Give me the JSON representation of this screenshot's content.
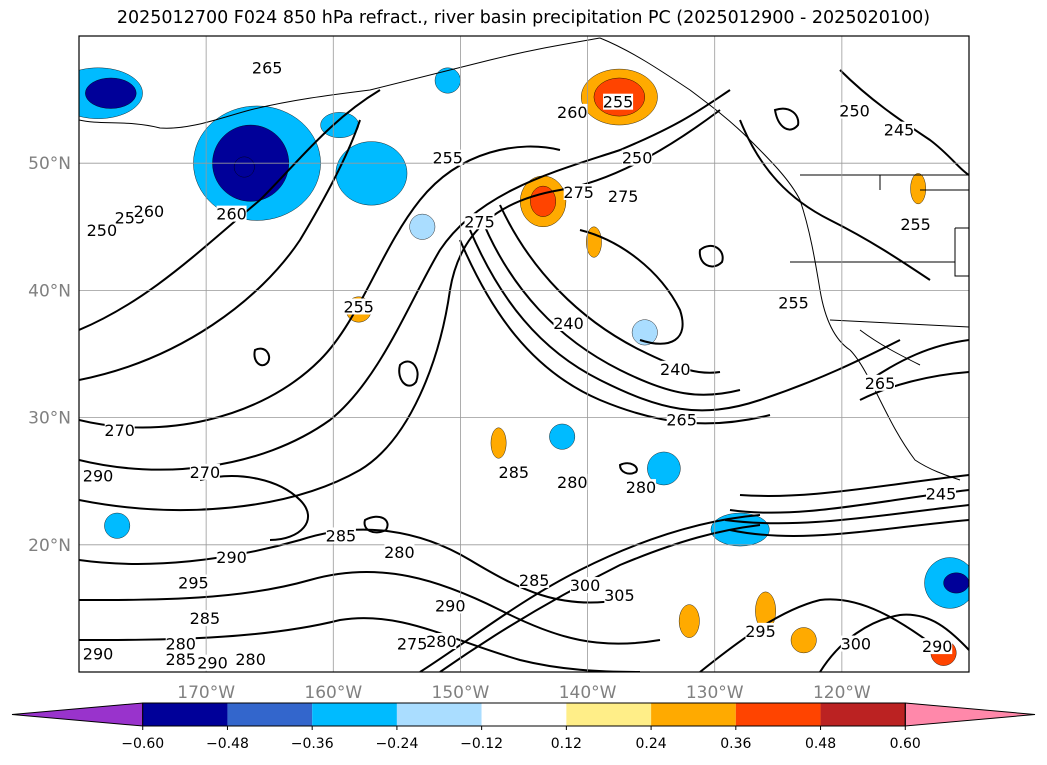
{
  "title": "2025012700 F024 850 hPa refract., river basin precipitation PC (2025012900 - 2025020100)",
  "map": {
    "lon_range": [
      -180,
      -110
    ],
    "lat_range": [
      10,
      60
    ],
    "lat_ticks": [
      "20°N",
      "30°N",
      "40°N",
      "50°N"
    ],
    "lat_values": [
      20,
      30,
      40,
      50
    ],
    "lon_ticks": [
      "170°W",
      "160°W",
      "150°W",
      "140°W",
      "130°W",
      "120°W"
    ],
    "lon_values": [
      -170,
      -160,
      -150,
      -140,
      -130,
      -120
    ],
    "grid": true
  },
  "contour_labels": [
    {
      "text": "265",
      "lon": -165.2,
      "lat": 57.3
    },
    {
      "text": "260",
      "lon": -141.2,
      "lat": 53.8
    },
    {
      "text": "255",
      "lon": -137.6,
      "lat": 54.6
    },
    {
      "text": "255",
      "lon": -151.0,
      "lat": 50.2
    },
    {
      "text": "275",
      "lon": -140.7,
      "lat": 47.5
    },
    {
      "text": "275",
      "lon": -148.5,
      "lat": 45.2
    },
    {
      "text": "275",
      "lon": -137.2,
      "lat": 47.2
    },
    {
      "text": "250",
      "lon": -136.1,
      "lat": 50.2
    },
    {
      "text": "250",
      "lon": -178.2,
      "lat": 44.5
    },
    {
      "text": "255",
      "lon": -176.0,
      "lat": 45.5
    },
    {
      "text": "260",
      "lon": -174.5,
      "lat": 46.0
    },
    {
      "text": "260",
      "lon": -168.0,
      "lat": 45.8
    },
    {
      "text": "255",
      "lon": -158.0,
      "lat": 38.5
    },
    {
      "text": "250",
      "lon": -119.0,
      "lat": 53.9
    },
    {
      "text": "245",
      "lon": -115.5,
      "lat": 52.4
    },
    {
      "text": "255",
      "lon": -114.2,
      "lat": 45.0
    },
    {
      "text": "240",
      "lon": -141.5,
      "lat": 37.2
    },
    {
      "text": "240",
      "lon": -133.1,
      "lat": 33.6
    },
    {
      "text": "255",
      "lon": -123.8,
      "lat": 38.8
    },
    {
      "text": "265",
      "lon": -132.6,
      "lat": 29.6
    },
    {
      "text": "265",
      "lon": -117.0,
      "lat": 32.5
    },
    {
      "text": "270",
      "lon": -176.8,
      "lat": 28.8
    },
    {
      "text": "270",
      "lon": -170.1,
      "lat": 25.5
    },
    {
      "text": "290",
      "lon": -178.5,
      "lat": 25.2
    },
    {
      "text": "285",
      "lon": -145.8,
      "lat": 25.5
    },
    {
      "text": "280",
      "lon": -141.2,
      "lat": 24.7
    },
    {
      "text": "280",
      "lon": -135.8,
      "lat": 24.3
    },
    {
      "text": "285",
      "lon": -159.4,
      "lat": 20.5
    },
    {
      "text": "280",
      "lon": -154.8,
      "lat": 19.2
    },
    {
      "text": "290",
      "lon": -168.0,
      "lat": 18.8
    },
    {
      "text": "295",
      "lon": -171.0,
      "lat": 16.8
    },
    {
      "text": "285",
      "lon": -170.1,
      "lat": 14.0
    },
    {
      "text": "290",
      "lon": -150.8,
      "lat": 15.0
    },
    {
      "text": "285",
      "lon": -144.2,
      "lat": 17.0
    },
    {
      "text": "300",
      "lon": -140.2,
      "lat": 16.6
    },
    {
      "text": "305",
      "lon": -137.5,
      "lat": 15.8
    },
    {
      "text": "295",
      "lon": -126.4,
      "lat": 13.0
    },
    {
      "text": "280",
      "lon": -172.0,
      "lat": 12.0
    },
    {
      "text": "285",
      "lon": -172.0,
      "lat": 10.8
    },
    {
      "text": "290",
      "lon": -169.5,
      "lat": 10.5
    },
    {
      "text": "280",
      "lon": -166.5,
      "lat": 10.8
    },
    {
      "text": "290",
      "lon": -178.5,
      "lat": 11.2
    },
    {
      "text": "275",
      "lon": -153.8,
      "lat": 12.0
    },
    {
      "text": "280",
      "lon": -151.5,
      "lat": 12.2
    },
    {
      "text": "300",
      "lon": -118.9,
      "lat": 12.0
    },
    {
      "text": "290",
      "lon": -112.5,
      "lat": 11.8
    },
    {
      "text": "245",
      "lon": -112.2,
      "lat": 23.8
    }
  ],
  "shaded_areas": [
    {
      "value": -0.3,
      "lon": -178.5,
      "lat": 55.5,
      "rlon": 3.5,
      "rlat": 2.0
    },
    {
      "value": -0.5,
      "lon": -177.5,
      "lat": 55.5,
      "rlon": 2.0,
      "rlat": 1.2
    },
    {
      "value": -0.3,
      "lon": -166.0,
      "lat": 50.0,
      "rlon": 5.0,
      "rlat": 4.5
    },
    {
      "value": -0.5,
      "lon": -166.5,
      "lat": 50.0,
      "rlon": 3.0,
      "rlat": 3.0
    },
    {
      "value": -0.6,
      "lon": -167.0,
      "lat": 49.7,
      "rlon": 0.8,
      "rlat": 0.8
    },
    {
      "value": -0.3,
      "lon": -157.0,
      "lat": 49.2,
      "rlon": 2.8,
      "rlat": 2.5
    },
    {
      "value": -0.3,
      "lon": -159.5,
      "lat": 53.0,
      "rlon": 1.5,
      "rlat": 1.0
    },
    {
      "value": -0.3,
      "lon": -151.0,
      "lat": 56.5,
      "rlon": 1.0,
      "rlat": 1.0
    },
    {
      "value": -0.2,
      "lon": -153.0,
      "lat": 45.0,
      "rlon": 1.0,
      "rlat": 1.0
    },
    {
      "value": 0.3,
      "lon": -137.5,
      "lat": 55.2,
      "rlon": 3.0,
      "rlat": 2.2
    },
    {
      "value": 0.4,
      "lon": -137.5,
      "lat": 55.2,
      "rlon": 2.0,
      "rlat": 1.5
    },
    {
      "value": 0.3,
      "lon": -143.5,
      "lat": 47.0,
      "rlon": 1.8,
      "rlat": 2.0
    },
    {
      "value": 0.4,
      "lon": -143.5,
      "lat": 47.0,
      "rlon": 1.0,
      "rlat": 1.2
    },
    {
      "value": 0.3,
      "lon": -158.0,
      "lat": 38.5,
      "rlon": 1.0,
      "rlat": 1.0
    },
    {
      "value": 0.3,
      "lon": -139.5,
      "lat": 43.8,
      "rlon": 0.6,
      "rlat": 1.2
    },
    {
      "value": -0.3,
      "lon": -134.0,
      "lat": 26.0,
      "rlon": 1.3,
      "rlat": 1.3
    },
    {
      "value": -0.3,
      "lon": -142.0,
      "lat": 28.5,
      "rlon": 1.0,
      "rlat": 1.0
    },
    {
      "value": -0.3,
      "lon": -128.0,
      "lat": 21.2,
      "rlon": 2.3,
      "rlat": 1.3
    },
    {
      "value": -0.3,
      "lon": -111.5,
      "lat": 17.0,
      "rlon": 2.0,
      "rlat": 2.0
    },
    {
      "value": -0.5,
      "lon": -111.0,
      "lat": 17.0,
      "rlon": 1.0,
      "rlat": 0.8
    },
    {
      "value": -0.3,
      "lon": -177.0,
      "lat": 21.5,
      "rlon": 1.0,
      "rlat": 1.0
    },
    {
      "value": -0.2,
      "lon": -135.5,
      "lat": 36.7,
      "rlon": 1.0,
      "rlat": 1.0
    },
    {
      "value": 0.3,
      "lon": -132.0,
      "lat": 14.0,
      "rlon": 0.8,
      "rlat": 1.3
    },
    {
      "value": 0.3,
      "lon": -126.0,
      "lat": 14.8,
      "rlon": 0.8,
      "rlat": 1.5
    },
    {
      "value": 0.3,
      "lon": -123.0,
      "lat": 12.5,
      "rlon": 1.0,
      "rlat": 1.0
    },
    {
      "value": 0.4,
      "lon": -112.0,
      "lat": 11.5,
      "rlon": 1.0,
      "rlat": 1.0
    },
    {
      "value": 0.3,
      "lon": -147.0,
      "lat": 28.0,
      "rlon": 0.6,
      "rlat": 1.2
    },
    {
      "value": 0.3,
      "lon": -114.0,
      "lat": 48.0,
      "rlon": 0.6,
      "rlat": 1.2
    }
  ],
  "colorbar": {
    "levels": [
      -0.6,
      -0.48,
      -0.36,
      -0.24,
      -0.12,
      0.12,
      0.24,
      0.36,
      0.48,
      0.6
    ],
    "tick_labels": [
      "−0.60",
      "−0.48",
      "−0.36",
      "−0.24",
      "−0.12",
      "0.12",
      "0.24",
      "0.36",
      "0.48",
      "0.60"
    ],
    "colors": [
      "#9933cc",
      "#000099",
      "#3366cc",
      "#00bbff",
      "#aaddff",
      "#ffffff",
      "#ffee88",
      "#ffaa00",
      "#ff4400",
      "#bb2222",
      "#ff88aa"
    ],
    "under_color": "#9933cc",
    "over_color": "#ff88aa"
  }
}
